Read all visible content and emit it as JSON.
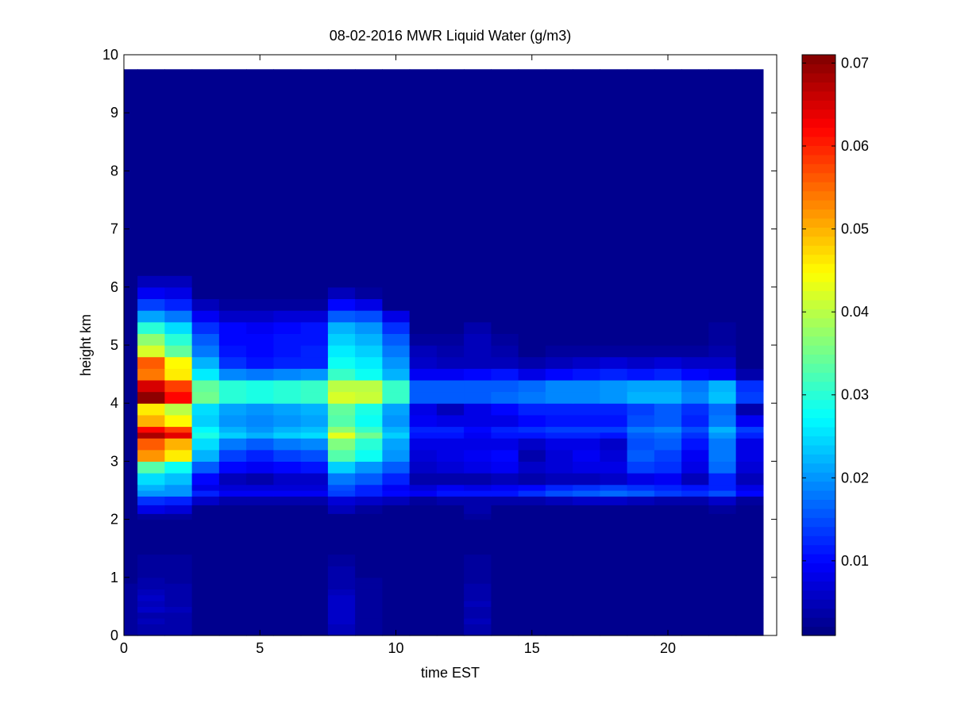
{
  "chart_data": {
    "type": "heatmap",
    "title": "08-02-2016 MWR Liquid Water (g/m3)",
    "xlabel": "time EST",
    "ylabel": "height km",
    "xlim": [
      0,
      24
    ],
    "ylim": [
      0,
      10
    ],
    "xticks": [
      "0",
      "5",
      "10",
      "15",
      "20"
    ],
    "yticks": [
      "0",
      "1",
      "2",
      "3",
      "4",
      "5",
      "6",
      "7",
      "8",
      "9",
      "10"
    ],
    "colorbar": {
      "colormap": "jet",
      "range": [
        0.001,
        0.071
      ],
      "ticks": [
        "0.01",
        "0.02",
        "0.03",
        "0.04",
        "0.05",
        "0.06",
        "0.07"
      ]
    },
    "time_bins": [
      {
        "start": 0,
        "end": 0.5
      },
      {
        "start": 0.5,
        "end": 1.5
      },
      {
        "start": 1.5,
        "end": 2.5
      },
      {
        "start": 2.5,
        "end": 3.5
      },
      {
        "start": 3.5,
        "end": 4.5
      },
      {
        "start": 4.5,
        "end": 5.5
      },
      {
        "start": 5.5,
        "end": 6.5
      },
      {
        "start": 6.5,
        "end": 7.5
      },
      {
        "start": 7.5,
        "end": 8.5
      },
      {
        "start": 8.5,
        "end": 9.5
      },
      {
        "start": 9.5,
        "end": 10.5
      },
      {
        "start": 10.5,
        "end": 11.5
      },
      {
        "start": 11.5,
        "end": 12.5
      },
      {
        "start": 12.5,
        "end": 13.5
      },
      {
        "start": 13.5,
        "end": 14.5
      },
      {
        "start": 14.5,
        "end": 15.5
      },
      {
        "start": 15.5,
        "end": 16.5
      },
      {
        "start": 16.5,
        "end": 17.5
      },
      {
        "start": 17.5,
        "end": 18.5
      },
      {
        "start": 18.5,
        "end": 19.5
      },
      {
        "start": 19.5,
        "end": 20.5
      },
      {
        "start": 20.5,
        "end": 21.5
      },
      {
        "start": 21.5,
        "end": 22.5
      },
      {
        "start": 22.5,
        "end": 23.5
      }
    ],
    "height_top": 9.75,
    "height_levels": [
      {
        "bottom": 0.0,
        "top": 0.2
      },
      {
        "bottom": 0.2,
        "top": 0.3
      },
      {
        "bottom": 0.3,
        "top": 0.4
      },
      {
        "bottom": 0.4,
        "top": 0.5
      },
      {
        "bottom": 0.5,
        "top": 0.6
      },
      {
        "bottom": 0.6,
        "top": 0.7
      },
      {
        "bottom": 0.7,
        "top": 0.8
      },
      {
        "bottom": 0.8,
        "top": 0.9
      },
      {
        "bottom": 0.9,
        "top": 1.0
      },
      {
        "bottom": 1.0,
        "top": 1.2
      },
      {
        "bottom": 1.2,
        "top": 1.4
      },
      {
        "bottom": 1.4,
        "top": 1.6
      },
      {
        "bottom": 1.6,
        "top": 1.8
      },
      {
        "bottom": 1.8,
        "top": 2.0
      },
      {
        "bottom": 2.0,
        "top": 2.1
      },
      {
        "bottom": 2.1,
        "top": 2.25
      },
      {
        "bottom": 2.25,
        "top": 2.4
      },
      {
        "bottom": 2.4,
        "top": 2.5
      },
      {
        "bottom": 2.5,
        "top": 2.6
      },
      {
        "bottom": 2.6,
        "top": 2.8
      },
      {
        "bottom": 2.8,
        "top": 3.0
      },
      {
        "bottom": 3.0,
        "top": 3.2
      },
      {
        "bottom": 3.2,
        "top": 3.4
      },
      {
        "bottom": 3.4,
        "top": 3.5
      },
      {
        "bottom": 3.5,
        "top": 3.6
      },
      {
        "bottom": 3.6,
        "top": 3.8
      },
      {
        "bottom": 3.8,
        "top": 4.0
      },
      {
        "bottom": 4.0,
        "top": 4.2
      },
      {
        "bottom": 4.2,
        "top": 4.4
      },
      {
        "bottom": 4.4,
        "top": 4.6
      },
      {
        "bottom": 4.6,
        "top": 4.8
      },
      {
        "bottom": 4.8,
        "top": 5.0
      },
      {
        "bottom": 5.0,
        "top": 5.2
      },
      {
        "bottom": 5.2,
        "top": 5.4
      },
      {
        "bottom": 5.4,
        "top": 5.6
      },
      {
        "bottom": 5.6,
        "top": 5.8
      },
      {
        "bottom": 5.8,
        "top": 6.0
      },
      {
        "bottom": 6.0,
        "top": 6.2
      },
      {
        "bottom": 6.2,
        "top": 9.75
      }
    ],
    "values": [
      [
        0.003,
        0.004,
        0.004,
        0.002,
        0.002,
        0.002,
        0.002,
        0.002,
        0.005,
        0.003,
        0.002,
        0.002,
        0.002,
        0.004,
        0.002,
        0.002,
        0.002,
        0.002,
        0.002,
        0.002,
        0.002,
        0.002,
        0.002,
        0.002
      ],
      [
        0.003,
        0.005,
        0.004,
        0.002,
        0.002,
        0.002,
        0.002,
        0.002,
        0.006,
        0.003,
        0.002,
        0.002,
        0.002,
        0.005,
        0.002,
        0.002,
        0.002,
        0.002,
        0.002,
        0.002,
        0.002,
        0.002,
        0.002,
        0.002
      ],
      [
        0.003,
        0.004,
        0.004,
        0.002,
        0.002,
        0.002,
        0.002,
        0.002,
        0.006,
        0.003,
        0.002,
        0.002,
        0.002,
        0.004,
        0.002,
        0.002,
        0.002,
        0.002,
        0.002,
        0.002,
        0.002,
        0.002,
        0.002,
        0.002
      ],
      [
        0.003,
        0.006,
        0.005,
        0.002,
        0.002,
        0.002,
        0.002,
        0.002,
        0.006,
        0.003,
        0.002,
        0.002,
        0.002,
        0.004,
        0.002,
        0.002,
        0.002,
        0.002,
        0.002,
        0.002,
        0.002,
        0.002,
        0.002,
        0.002
      ],
      [
        0.003,
        0.005,
        0.004,
        0.002,
        0.002,
        0.002,
        0.002,
        0.002,
        0.006,
        0.003,
        0.002,
        0.002,
        0.002,
        0.005,
        0.002,
        0.002,
        0.002,
        0.002,
        0.002,
        0.002,
        0.002,
        0.002,
        0.002,
        0.002
      ],
      [
        0.003,
        0.006,
        0.004,
        0.002,
        0.002,
        0.002,
        0.002,
        0.002,
        0.006,
        0.003,
        0.002,
        0.002,
        0.002,
        0.004,
        0.002,
        0.002,
        0.002,
        0.002,
        0.002,
        0.002,
        0.002,
        0.002,
        0.002,
        0.002
      ],
      [
        0.003,
        0.005,
        0.004,
        0.002,
        0.002,
        0.002,
        0.002,
        0.002,
        0.005,
        0.003,
        0.002,
        0.002,
        0.002,
        0.004,
        0.002,
        0.002,
        0.002,
        0.002,
        0.002,
        0.002,
        0.002,
        0.002,
        0.002,
        0.002
      ],
      [
        0.003,
        0.004,
        0.004,
        0.002,
        0.002,
        0.002,
        0.002,
        0.002,
        0.004,
        0.003,
        0.002,
        0.002,
        0.002,
        0.004,
        0.002,
        0.002,
        0.002,
        0.002,
        0.002,
        0.002,
        0.002,
        0.002,
        0.002,
        0.002
      ],
      [
        0.002,
        0.004,
        0.003,
        0.002,
        0.002,
        0.002,
        0.002,
        0.002,
        0.004,
        0.003,
        0.002,
        0.002,
        0.002,
        0.003,
        0.002,
        0.002,
        0.002,
        0.002,
        0.002,
        0.002,
        0.002,
        0.002,
        0.002,
        0.002
      ],
      [
        0.002,
        0.003,
        0.003,
        0.002,
        0.002,
        0.002,
        0.002,
        0.002,
        0.004,
        0.002,
        0.002,
        0.002,
        0.002,
        0.003,
        0.002,
        0.002,
        0.002,
        0.002,
        0.002,
        0.002,
        0.002,
        0.002,
        0.002,
        0.002
      ],
      [
        0.002,
        0.003,
        0.003,
        0.002,
        0.002,
        0.002,
        0.002,
        0.002,
        0.003,
        0.002,
        0.002,
        0.002,
        0.002,
        0.003,
        0.002,
        0.002,
        0.002,
        0.002,
        0.002,
        0.002,
        0.002,
        0.002,
        0.002,
        0.002
      ],
      [
        0.002,
        0.002,
        0.002,
        0.002,
        0.002,
        0.002,
        0.002,
        0.002,
        0.002,
        0.002,
        0.002,
        0.002,
        0.002,
        0.002,
        0.002,
        0.002,
        0.002,
        0.002,
        0.002,
        0.002,
        0.002,
        0.002,
        0.002,
        0.002
      ],
      [
        0.002,
        0.002,
        0.002,
        0.002,
        0.002,
        0.002,
        0.002,
        0.002,
        0.002,
        0.002,
        0.002,
        0.002,
        0.002,
        0.002,
        0.002,
        0.002,
        0.002,
        0.002,
        0.002,
        0.002,
        0.002,
        0.002,
        0.002,
        0.002
      ],
      [
        0.002,
        0.002,
        0.002,
        0.002,
        0.002,
        0.002,
        0.002,
        0.002,
        0.002,
        0.002,
        0.002,
        0.002,
        0.002,
        0.002,
        0.002,
        0.002,
        0.002,
        0.002,
        0.002,
        0.002,
        0.002,
        0.002,
        0.002,
        0.002
      ],
      [
        0.002,
        0.003,
        0.003,
        0.002,
        0.002,
        0.002,
        0.002,
        0.002,
        0.002,
        0.002,
        0.002,
        0.002,
        0.002,
        0.003,
        0.002,
        0.002,
        0.002,
        0.002,
        0.002,
        0.002,
        0.002,
        0.002,
        0.002,
        0.002
      ],
      [
        0.002,
        0.008,
        0.007,
        0.002,
        0.002,
        0.002,
        0.002,
        0.002,
        0.005,
        0.003,
        0.002,
        0.002,
        0.002,
        0.004,
        0.002,
        0.002,
        0.002,
        0.002,
        0.002,
        0.002,
        0.002,
        0.002,
        0.003,
        0.002
      ],
      [
        0.002,
        0.013,
        0.012,
        0.006,
        0.004,
        0.004,
        0.004,
        0.004,
        0.007,
        0.006,
        0.005,
        0.003,
        0.004,
        0.004,
        0.004,
        0.004,
        0.005,
        0.006,
        0.006,
        0.005,
        0.004,
        0.004,
        0.006,
        0.003
      ],
      [
        0.002,
        0.02,
        0.02,
        0.012,
        0.009,
        0.009,
        0.009,
        0.009,
        0.014,
        0.012,
        0.01,
        0.009,
        0.011,
        0.011,
        0.011,
        0.013,
        0.015,
        0.016,
        0.017,
        0.016,
        0.014,
        0.013,
        0.015,
        0.01
      ],
      [
        0.002,
        0.022,
        0.02,
        0.008,
        0.007,
        0.007,
        0.007,
        0.007,
        0.015,
        0.012,
        0.009,
        0.007,
        0.009,
        0.008,
        0.009,
        0.01,
        0.012,
        0.013,
        0.014,
        0.013,
        0.012,
        0.011,
        0.012,
        0.008
      ],
      [
        0.002,
        0.025,
        0.023,
        0.01,
        0.005,
        0.004,
        0.006,
        0.006,
        0.018,
        0.016,
        0.012,
        0.004,
        0.004,
        0.004,
        0.005,
        0.004,
        0.005,
        0.005,
        0.006,
        0.008,
        0.009,
        0.005,
        0.012,
        0.005
      ],
      [
        0.002,
        0.033,
        0.028,
        0.016,
        0.01,
        0.009,
        0.01,
        0.011,
        0.024,
        0.02,
        0.016,
        0.006,
        0.007,
        0.008,
        0.009,
        0.006,
        0.007,
        0.008,
        0.008,
        0.014,
        0.013,
        0.008,
        0.017,
        0.007
      ],
      [
        0.002,
        0.052,
        0.046,
        0.022,
        0.014,
        0.012,
        0.014,
        0.015,
        0.033,
        0.028,
        0.02,
        0.007,
        0.008,
        0.009,
        0.01,
        0.004,
        0.007,
        0.009,
        0.007,
        0.016,
        0.014,
        0.009,
        0.018,
        0.008
      ],
      [
        0.002,
        0.056,
        0.05,
        0.025,
        0.018,
        0.016,
        0.018,
        0.019,
        0.036,
        0.03,
        0.021,
        0.008,
        0.008,
        0.008,
        0.008,
        0.006,
        0.008,
        0.008,
        0.006,
        0.015,
        0.016,
        0.011,
        0.018,
        0.008
      ],
      [
        0.002,
        0.068,
        0.064,
        0.029,
        0.024,
        0.022,
        0.024,
        0.025,
        0.043,
        0.035,
        0.024,
        0.011,
        0.011,
        0.009,
        0.011,
        0.011,
        0.012,
        0.012,
        0.011,
        0.016,
        0.017,
        0.013,
        0.02,
        0.012
      ],
      [
        0.002,
        0.062,
        0.058,
        0.027,
        0.022,
        0.02,
        0.022,
        0.023,
        0.037,
        0.031,
        0.022,
        0.012,
        0.012,
        0.01,
        0.012,
        0.013,
        0.014,
        0.014,
        0.014,
        0.018,
        0.019,
        0.015,
        0.022,
        0.014
      ],
      [
        0.002,
        0.05,
        0.045,
        0.024,
        0.02,
        0.019,
        0.02,
        0.021,
        0.033,
        0.028,
        0.02,
        0.009,
        0.008,
        0.008,
        0.008,
        0.01,
        0.011,
        0.011,
        0.011,
        0.015,
        0.016,
        0.012,
        0.018,
        0.009
      ],
      [
        0.002,
        0.046,
        0.04,
        0.025,
        0.021,
        0.02,
        0.021,
        0.022,
        0.034,
        0.029,
        0.021,
        0.008,
        0.005,
        0.008,
        0.01,
        0.012,
        0.012,
        0.012,
        0.012,
        0.014,
        0.016,
        0.013,
        0.017,
        0.004
      ],
      [
        0.002,
        0.07,
        0.062,
        0.035,
        0.03,
        0.029,
        0.03,
        0.031,
        0.042,
        0.041,
        0.031,
        0.016,
        0.016,
        0.016,
        0.017,
        0.018,
        0.019,
        0.019,
        0.02,
        0.022,
        0.022,
        0.019,
        0.023,
        0.014
      ],
      [
        0.002,
        0.065,
        0.058,
        0.034,
        0.03,
        0.029,
        0.03,
        0.031,
        0.04,
        0.04,
        0.031,
        0.016,
        0.016,
        0.016,
        0.016,
        0.017,
        0.019,
        0.019,
        0.02,
        0.021,
        0.021,
        0.018,
        0.022,
        0.013
      ],
      [
        0.002,
        0.054,
        0.046,
        0.026,
        0.019,
        0.018,
        0.019,
        0.02,
        0.031,
        0.028,
        0.022,
        0.009,
        0.009,
        0.01,
        0.011,
        0.008,
        0.01,
        0.011,
        0.012,
        0.011,
        0.012,
        0.01,
        0.009,
        0.004
      ],
      [
        0.002,
        0.056,
        0.045,
        0.022,
        0.013,
        0.011,
        0.012,
        0.012,
        0.028,
        0.026,
        0.02,
        0.006,
        0.005,
        0.005,
        0.005,
        0.004,
        0.005,
        0.006,
        0.007,
        0.006,
        0.007,
        0.006,
        0.006,
        0.002
      ],
      [
        0.002,
        0.042,
        0.034,
        0.018,
        0.011,
        0.01,
        0.011,
        0.012,
        0.026,
        0.024,
        0.018,
        0.005,
        0.004,
        0.005,
        0.004,
        0.002,
        0.003,
        0.003,
        0.003,
        0.003,
        0.003,
        0.003,
        0.004,
        0.002
      ],
      [
        0.002,
        0.037,
        0.03,
        0.016,
        0.01,
        0.01,
        0.011,
        0.011,
        0.024,
        0.022,
        0.016,
        0.003,
        0.003,
        0.005,
        0.003,
        0.002,
        0.002,
        0.002,
        0.002,
        0.002,
        0.002,
        0.002,
        0.003,
        0.002
      ],
      [
        0.002,
        0.03,
        0.025,
        0.013,
        0.01,
        0.009,
        0.01,
        0.011,
        0.022,
        0.02,
        0.013,
        0.002,
        0.002,
        0.004,
        0.002,
        0.002,
        0.002,
        0.002,
        0.002,
        0.002,
        0.002,
        0.002,
        0.003,
        0.002
      ],
      [
        0.002,
        0.021,
        0.018,
        0.009,
        0.006,
        0.006,
        0.007,
        0.007,
        0.016,
        0.015,
        0.008,
        0.002,
        0.002,
        0.002,
        0.002,
        0.002,
        0.002,
        0.002,
        0.002,
        0.002,
        0.002,
        0.002,
        0.002,
        0.002
      ],
      [
        0.002,
        0.014,
        0.012,
        0.005,
        0.003,
        0.003,
        0.003,
        0.003,
        0.01,
        0.008,
        0.002,
        0.002,
        0.002,
        0.002,
        0.002,
        0.002,
        0.002,
        0.002,
        0.002,
        0.002,
        0.002,
        0.002,
        0.002,
        0.002
      ],
      [
        0.002,
        0.009,
        0.008,
        0.002,
        0.002,
        0.002,
        0.002,
        0.002,
        0.005,
        0.003,
        0.002,
        0.002,
        0.002,
        0.002,
        0.002,
        0.002,
        0.002,
        0.002,
        0.002,
        0.002,
        0.002,
        0.002,
        0.002,
        0.002
      ],
      [
        0.002,
        0.005,
        0.005,
        0.002,
        0.002,
        0.002,
        0.002,
        0.002,
        0.002,
        0.002,
        0.002,
        0.002,
        0.002,
        0.002,
        0.002,
        0.002,
        0.002,
        0.002,
        0.002,
        0.002,
        0.002,
        0.002,
        0.002,
        0.002
      ],
      [
        0.002,
        0.002,
        0.002,
        0.002,
        0.002,
        0.002,
        0.002,
        0.002,
        0.002,
        0.002,
        0.002,
        0.002,
        0.002,
        0.002,
        0.002,
        0.002,
        0.002,
        0.002,
        0.002,
        0.002,
        0.002,
        0.002,
        0.002,
        0.002
      ]
    ]
  }
}
